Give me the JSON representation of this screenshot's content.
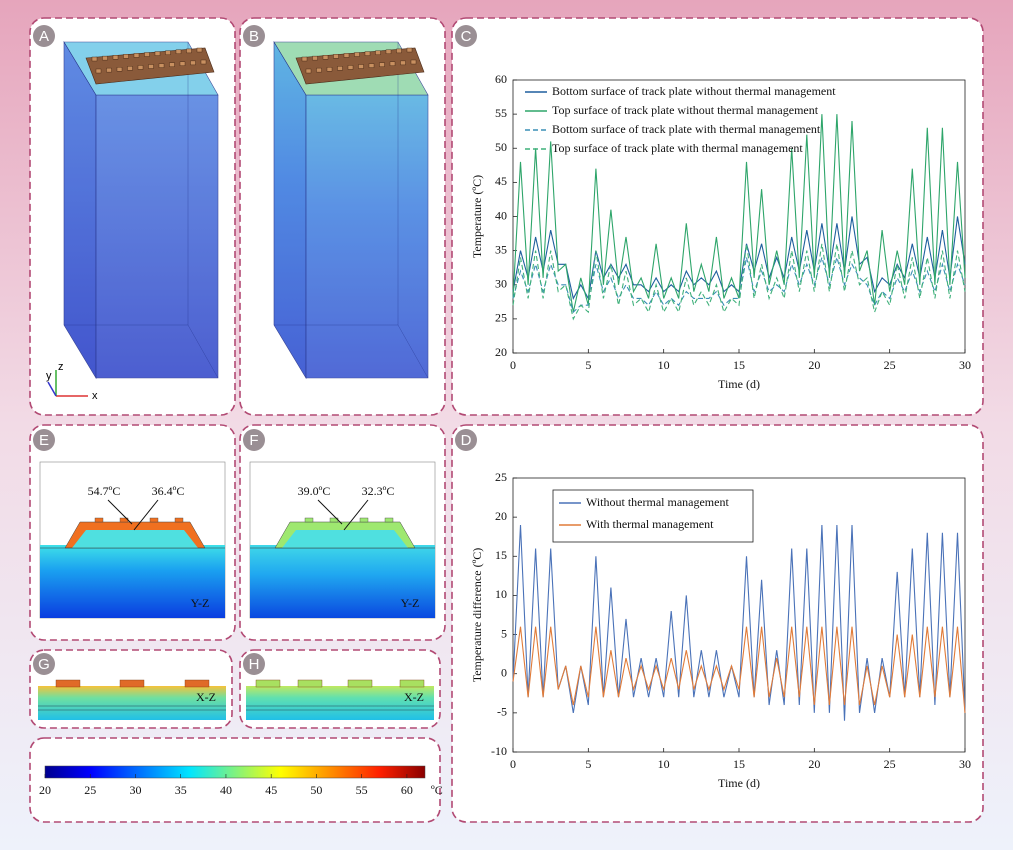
{
  "panel_labels": [
    "A",
    "B",
    "C",
    "E",
    "F",
    "G",
    "H",
    "D"
  ],
  "axes_triad": [
    "y",
    "z",
    "x"
  ],
  "sections": [
    {
      "hot": "54.7ºC",
      "cool": "36.4ºC",
      "plane": "Y-Z"
    },
    {
      "hot": "39.0ºC",
      "cool": "32.3ºC",
      "plane": "Y-Z"
    },
    {
      "plane": "X-Z"
    },
    {
      "plane": "X-Z"
    }
  ],
  "colorbar": {
    "lim": [
      20,
      62
    ],
    "ticks": [
      20,
      25,
      30,
      35,
      40,
      45,
      50,
      55,
      60
    ],
    "unit": "ºC"
  },
  "chart_data": [
    {
      "type": "line",
      "xlabel": "Time (d)",
      "ylabel": "Temperature (ºC)",
      "xlim": [
        0,
        30
      ],
      "xticks": [
        0,
        5,
        10,
        15,
        20,
        25,
        30
      ],
      "ylim": [
        20,
        60
      ],
      "yticks": [
        20,
        25,
        30,
        35,
        40,
        45,
        50,
        55,
        60
      ],
      "legend": "upper left",
      "legend_frame": false,
      "x": [
        0,
        0.5,
        1,
        1.5,
        2,
        2.5,
        3,
        3.5,
        4,
        4.5,
        5,
        5.5,
        6,
        6.5,
        7,
        7.5,
        8,
        8.5,
        9,
        9.5,
        10,
        10.5,
        11,
        11.5,
        12,
        12.5,
        13,
        13.5,
        14,
        14.5,
        15,
        15.5,
        16,
        16.5,
        17,
        17.5,
        18,
        18.5,
        19,
        19.5,
        20,
        20.5,
        21,
        21.5,
        22,
        22.5,
        23,
        23.5,
        24,
        24.5,
        25,
        25.5,
        26,
        26.5,
        27,
        27.5,
        28,
        28.5,
        29,
        29.5,
        30
      ],
      "series": [
        {
          "name": "Bottom surface of track plate without thermal management",
          "color": "#1f5f9e",
          "linestyle": "solid",
          "values": [
            29,
            35,
            31,
            37,
            32,
            38,
            33,
            33,
            28,
            30,
            28,
            35,
            31,
            33,
            31,
            33,
            30,
            30,
            29,
            31,
            29,
            30,
            29,
            32,
            30,
            31,
            30,
            32,
            29,
            30,
            29,
            36,
            32,
            36,
            31,
            34,
            31,
            37,
            32,
            38,
            32,
            39,
            32,
            39,
            32,
            40,
            33,
            34,
            29,
            31,
            30,
            33,
            31,
            36,
            31,
            37,
            31,
            38,
            31,
            40,
            33
          ]
        },
        {
          "name": "Top surface of track plate without thermal management",
          "color": "#2ea56a",
          "linestyle": "solid",
          "values": [
            28,
            48,
            30,
            50,
            31,
            51,
            32,
            33,
            26,
            31,
            27,
            47,
            30,
            41,
            30,
            37,
            29,
            31,
            28,
            36,
            28,
            31,
            28,
            39,
            29,
            33,
            29,
            37,
            28,
            31,
            28,
            48,
            31,
            44,
            30,
            35,
            30,
            50,
            31,
            52,
            31,
            55,
            31,
            55,
            31,
            54,
            32,
            35,
            27,
            38,
            29,
            35,
            30,
            47,
            30,
            53,
            30,
            53,
            30,
            48,
            31
          ]
        },
        {
          "name": "Bottom surface of track plate with thermal management",
          "color": "#3a8fb5",
          "linestyle": "dashed",
          "values": [
            28,
            32,
            29,
            33,
            29,
            33,
            30,
            30,
            26,
            27,
            27,
            33,
            29,
            31,
            28,
            30,
            28,
            28,
            27,
            29,
            27,
            28,
            27,
            29,
            28,
            28,
            28,
            29,
            27,
            28,
            28,
            34,
            29,
            32,
            29,
            30,
            29,
            33,
            30,
            33,
            30,
            34,
            30,
            34,
            30,
            33,
            31,
            30,
            27,
            29,
            28,
            31,
            29,
            32,
            29,
            32,
            29,
            33,
            29,
            33,
            30
          ]
        },
        {
          "name": "Top surface of track plate with thermal management",
          "color": "#3fb07a",
          "linestyle": "dashed",
          "values": [
            27,
            34,
            28,
            35,
            28,
            35,
            29,
            30,
            25,
            27,
            26,
            35,
            28,
            33,
            27,
            32,
            27,
            28,
            26,
            30,
            26,
            28,
            26,
            31,
            27,
            29,
            27,
            30,
            26,
            28,
            27,
            36,
            28,
            33,
            28,
            31,
            28,
            35,
            29,
            35,
            29,
            36,
            29,
            36,
            29,
            35,
            30,
            31,
            26,
            29,
            27,
            33,
            28,
            34,
            28,
            34,
            28,
            35,
            28,
            35,
            29
          ]
        }
      ]
    },
    {
      "type": "line",
      "xlabel": "Time (d)",
      "ylabel": "Temperature difference (ºC)",
      "xlim": [
        0,
        30
      ],
      "xticks": [
        0,
        5,
        10,
        15,
        20,
        25,
        30
      ],
      "ylim": [
        -10,
        25
      ],
      "yticks": [
        -10,
        -5,
        0,
        5,
        10,
        15,
        20,
        25
      ],
      "legend": "upper left",
      "legend_frame": true,
      "x": [
        0,
        0.5,
        1,
        1.5,
        2,
        2.5,
        3,
        3.5,
        4,
        4.5,
        5,
        5.5,
        6,
        6.5,
        7,
        7.5,
        8,
        8.5,
        9,
        9.5,
        10,
        10.5,
        11,
        11.5,
        12,
        12.5,
        13,
        13.5,
        14,
        14.5,
        15,
        15.5,
        16,
        16.5,
        17,
        17.5,
        18,
        18.5,
        19,
        19.5,
        20,
        20.5,
        21,
        21.5,
        22,
        22.5,
        23,
        23.5,
        24,
        24.5,
        25,
        25.5,
        26,
        26.5,
        27,
        27.5,
        28,
        28.5,
        29,
        29.5,
        30
      ],
      "series": [
        {
          "name": "Without  thermal management",
          "color": "#4a72b8",
          "linestyle": "solid",
          "values": [
            -1,
            19,
            -3,
            16,
            -3,
            16,
            -2,
            1,
            -5,
            1,
            -4,
            15,
            -3,
            11,
            -3,
            7,
            -3,
            2,
            -3,
            2,
            -3,
            8,
            -3,
            10,
            -3,
            3,
            -3,
            3,
            -3,
            1,
            -3,
            15,
            -3,
            12,
            -4,
            3,
            -4,
            16,
            -4,
            16,
            -5,
            19,
            -5,
            19,
            -6,
            19,
            -5,
            2,
            -5,
            2,
            -3,
            13,
            -3,
            16,
            -3,
            18,
            -4,
            18,
            -3,
            18,
            -5
          ]
        },
        {
          "name": "With thermal management",
          "color": "#e07b39",
          "linestyle": "solid",
          "values": [
            -1,
            6,
            -3,
            6,
            -3,
            6,
            -2,
            1,
            -4,
            1,
            -3,
            6,
            -3,
            3,
            -3,
            2,
            -2,
            1,
            -2,
            1,
            -2,
            2,
            -2,
            3,
            -2,
            1,
            -2,
            1,
            -2,
            1,
            -2,
            6,
            -3,
            6,
            -3,
            2,
            -3,
            6,
            -3,
            6,
            -4,
            6,
            -4,
            6,
            -4,
            6,
            -4,
            1,
            -4,
            1,
            -3,
            5,
            -3,
            5,
            -3,
            6,
            -3,
            6,
            -3,
            6,
            -5
          ]
        }
      ]
    }
  ]
}
